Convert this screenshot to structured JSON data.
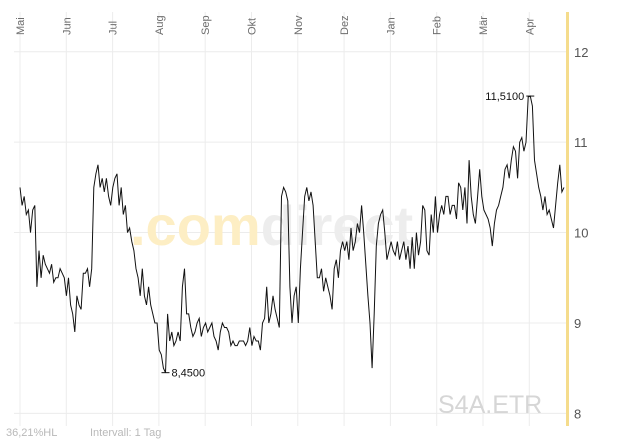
{
  "chart_data": {
    "type": "line",
    "symbol": "S4A.ETR",
    "watermark": {
      "part1": ".com",
      "part2": "direct"
    },
    "months": [
      "Mai",
      "Jun",
      "Jul",
      "Aug",
      "Sep",
      "Okt",
      "Nov",
      "Dez",
      "Jan",
      "Feb",
      "Mär",
      "Apr"
    ],
    "yticks": [
      8,
      9,
      10,
      11,
      12
    ],
    "ylim": [
      7.86,
      12.44
    ],
    "grid": true,
    "footer": {
      "hl": "36,21%HL",
      "interval": "Intervall: 1 Tag"
    },
    "annotations": {
      "max": {
        "label": "11,5100",
        "value": 11.51
      },
      "min": {
        "label": "8,4500",
        "value": 8.45
      }
    },
    "series": [
      {
        "values": [
          10.5,
          10.3,
          10.4,
          10.2,
          10.25,
          10,
          10.25,
          10.3,
          9.4,
          9.8,
          9.5,
          9.75,
          9.65,
          9.6,
          9.55,
          9.65,
          9.45,
          9.5,
          9.5,
          9.6,
          9.55,
          9.5,
          9.3,
          9.5,
          9.2,
          9.1,
          8.9,
          9.3,
          9.2,
          9.15,
          9.55,
          9.55,
          9.6,
          9.4,
          9.6,
          10.5,
          10.65,
          10.75,
          10.5,
          10.6,
          10.45,
          10.6,
          10.4,
          10.3,
          10.5,
          10.6,
          10.65,
          10.3,
          10.5,
          10.2,
          10.3,
          10,
          10.05,
          9.9,
          9.8,
          9.6,
          9.5,
          9.3,
          9.6,
          9.3,
          9.2,
          9.4,
          9.2,
          9.1,
          9,
          9,
          8.7,
          8.65,
          8.5,
          8.45,
          9.1,
          8.8,
          8.9,
          8.75,
          8.8,
          8.9,
          8.8,
          9.4,
          9.6,
          9.1,
          9.1,
          8.95,
          8.85,
          8.9,
          9,
          9.05,
          8.85,
          8.95,
          9,
          8.9,
          8.95,
          9,
          8.85,
          8.8,
          8.7,
          8.9,
          9,
          8.95,
          8.95,
          8.9,
          8.75,
          8.8,
          8.75,
          8.75,
          8.8,
          8.8,
          8.8,
          8.75,
          8.8,
          8.95,
          8.75,
          8.85,
          8.8,
          8.8,
          8.7,
          9.0,
          9.05,
          9.4,
          9.0,
          9.1,
          9.3,
          9.15,
          9.05,
          8.95,
          10.4,
          10.5,
          10.45,
          10.35,
          9.4,
          9.0,
          9.3,
          9.4,
          9.0,
          9.6,
          10,
          10.4,
          10.5,
          10.35,
          10.45,
          10.3,
          9.9,
          9.5,
          9.5,
          9.6,
          9.35,
          9.5,
          9.4,
          9.3,
          9.15,
          9.6,
          9.7,
          9.5,
          9.8,
          9.9,
          9.8,
          9.9,
          9.7,
          10.05,
          9.8,
          9.9,
          10.1,
          10,
          10.3,
          10.0,
          9.65,
          9.3,
          9.0,
          8.5,
          9.1,
          9.85,
          10.1,
          10.2,
          10.25,
          10.0,
          9.7,
          9.8,
          9.9,
          9.8,
          9.75,
          9.9,
          9.7,
          9.8,
          9.9,
          9.7,
          9.85,
          9.6,
          9.95,
          9.6,
          10.0,
          9.75,
          9.9,
          10.3,
          10.25,
          9.8,
          9.75,
          10.2,
          10.0,
          10.4,
          10.0,
          10.2,
          10.3,
          10.2,
          10.4,
          10.4,
          10.2,
          10.3,
          10.3,
          10.15,
          10.55,
          10.5,
          10.25,
          10.5,
          10.1,
          10.8,
          10.4,
          10.2,
          10.1,
          10.4,
          10.7,
          10.4,
          10.25,
          10.2,
          10.15,
          10.05,
          9.85,
          10.1,
          10.25,
          10.3,
          10.4,
          10.5,
          10.7,
          10.75,
          10.6,
          10.8,
          10.95,
          10.9,
          10.6,
          11,
          11.05,
          10.9,
          11,
          11.5,
          11.51,
          11.4,
          10.8,
          10.65,
          10.5,
          10.4,
          10.25,
          10.4,
          10.2,
          10.25,
          10.15,
          10.05,
          10.3,
          10.55,
          10.75,
          10.45,
          10.5
        ]
      }
    ]
  }
}
